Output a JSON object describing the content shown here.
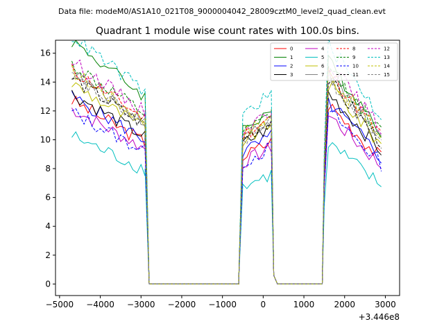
{
  "chart_data": {
    "type": "line",
    "suptitle": "Data file: modeM0/AS1A10_021T08_9000004042_28009cztM0_level2_quad_clean.evt",
    "title": "Quadrant 1 module wise count rates with 100.0s bins.",
    "xlabel": "",
    "ylabel": "",
    "x_offset_label": "+3.446e8",
    "xlim": [
      -5100,
      3350
    ],
    "ylim": [
      -0.8,
      16.9
    ],
    "xticks": [
      -5000,
      -4000,
      -3000,
      -2000,
      -1000,
      0,
      1000,
      2000,
      3000
    ],
    "xtick_labels": [
      "−5000",
      "−4000",
      "−3000",
      "−2000",
      "−1000",
      "0",
      "1000",
      "2000",
      "3000"
    ],
    "yticks": [
      0,
      2,
      4,
      6,
      8,
      10,
      12,
      14,
      16
    ],
    "ytick_labels": [
      "0",
      "2",
      "4",
      "6",
      "8",
      "10",
      "12",
      "14",
      "16"
    ],
    "grid": false,
    "legend_position": "top-right",
    "legend_columns": 4,
    "series": [
      {
        "name": "0",
        "color": "#ff0000",
        "dash": "solid",
        "base": 10.8,
        "second": 9.0,
        "third": 10.0
      },
      {
        "name": "1",
        "color": "#008000",
        "dash": "solid",
        "base": 14.3,
        "second": 11.0,
        "third": 12.3
      },
      {
        "name": "2",
        "color": "#0000ff",
        "dash": "solid",
        "base": 11.0,
        "second": 9.3,
        "third": 10.1
      },
      {
        "name": "3",
        "color": "#000000",
        "dash": "solid",
        "base": 11.2,
        "second": 9.9,
        "third": 10.6
      },
      {
        "name": "4",
        "color": "#bf00bf",
        "dash": "solid",
        "base": 10.3,
        "second": 8.6,
        "third": 9.4
      },
      {
        "name": "5",
        "color": "#00bfbf",
        "dash": "solid",
        "base": 8.7,
        "second": 6.9,
        "third": 7.8
      },
      {
        "name": "6",
        "color": "#bfbf00",
        "dash": "solid",
        "base": 11.8,
        "second": 10.1,
        "third": 11.1
      },
      {
        "name": "7",
        "color": "#808080",
        "dash": "solid",
        "base": 12.4,
        "second": 10.4,
        "third": 11.6
      },
      {
        "name": "8",
        "color": "#ff0000",
        "dash": "dashed",
        "base": 12.6,
        "second": 10.5,
        "third": 11.8
      },
      {
        "name": "9",
        "color": "#008000",
        "dash": "dashed",
        "base": 12.9,
        "second": 10.6,
        "third": 12.0
      },
      {
        "name": "10",
        "color": "#0000ff",
        "dash": "dashed",
        "base": 10.1,
        "second": 8.6,
        "third": 9.6
      },
      {
        "name": "11",
        "color": "#000000",
        "dash": "dashed",
        "base": 12.1,
        "second": 10.3,
        "third": 11.3
      },
      {
        "name": "12",
        "color": "#bf00bf",
        "dash": "dashed",
        "base": 13.1,
        "second": 10.9,
        "third": 12.3
      },
      {
        "name": "13",
        "color": "#00bfbf",
        "dash": "dashed",
        "base": 14.6,
        "second": 12.0,
        "third": 13.3
      },
      {
        "name": "14",
        "color": "#bfbf00",
        "dash": "dashed",
        "base": 12.5,
        "second": 10.6,
        "third": 11.7
      },
      {
        "name": "15",
        "color": "#808080",
        "dash": "dashed",
        "base": 12.2,
        "second": 10.2,
        "third": 11.4
      }
    ]
  }
}
